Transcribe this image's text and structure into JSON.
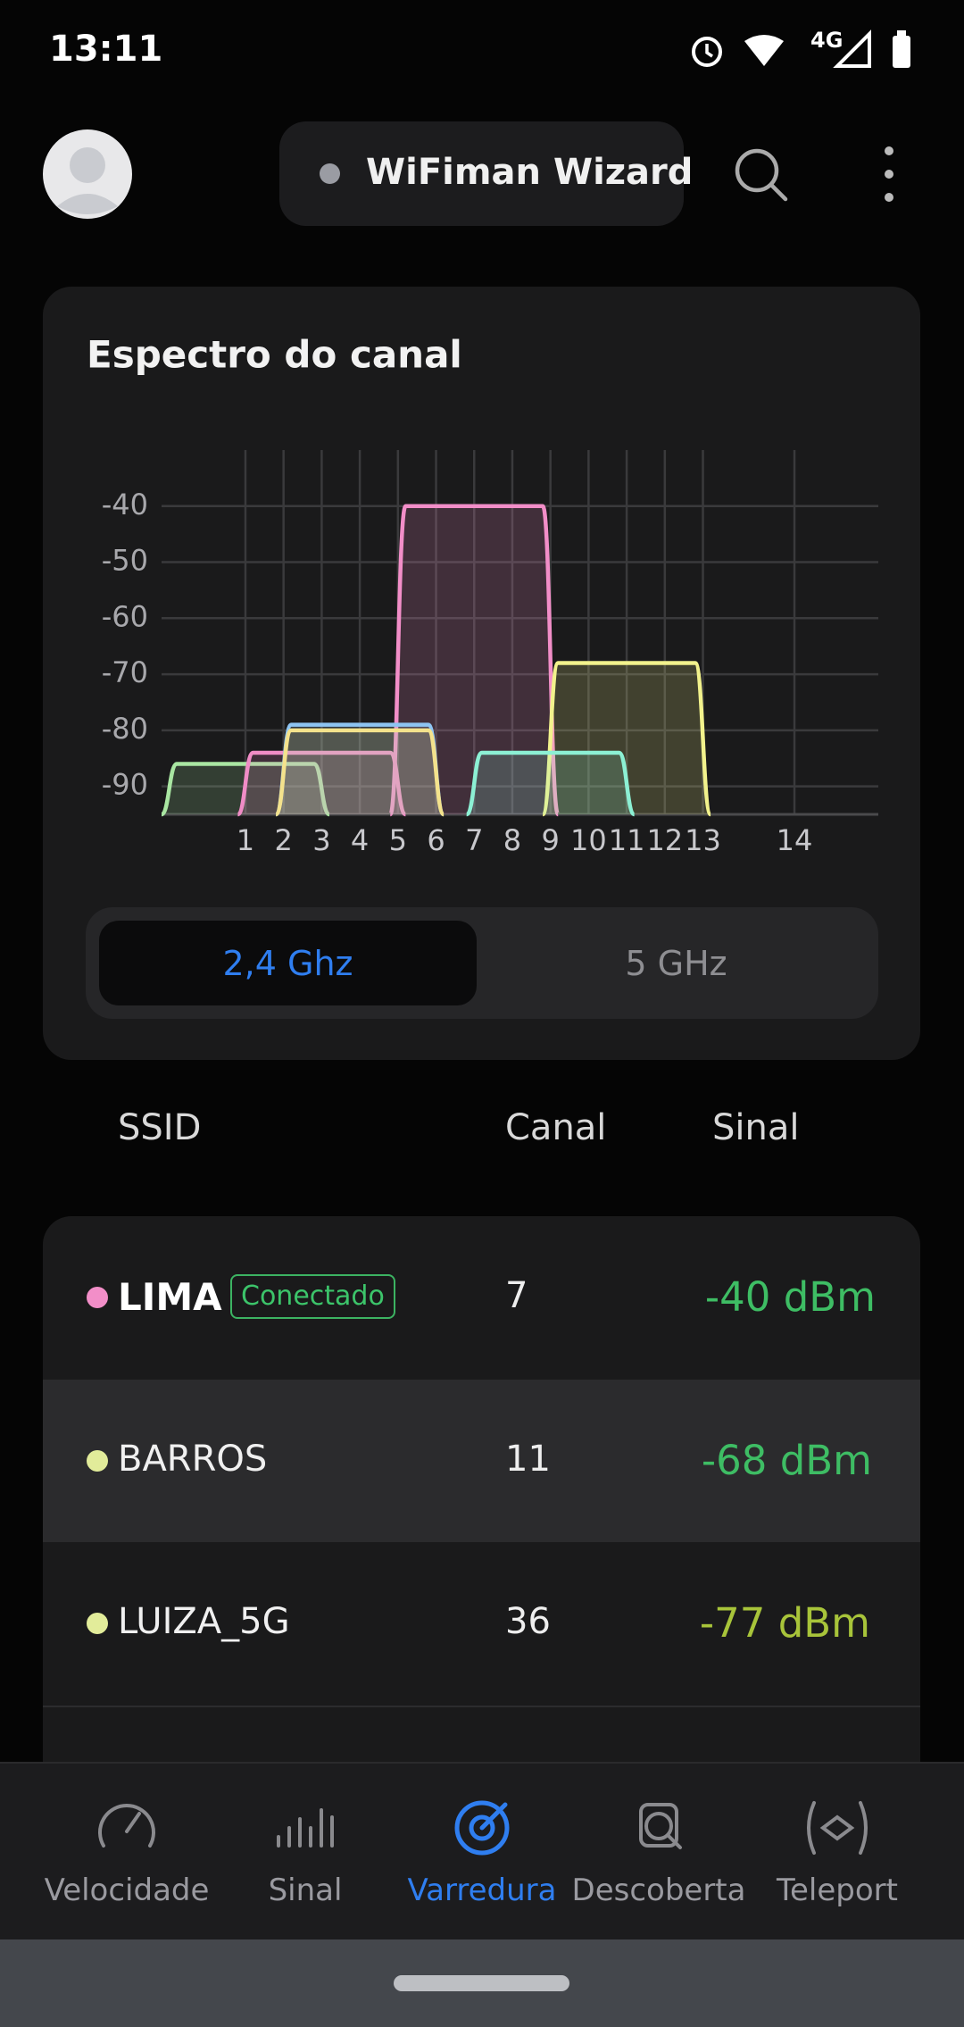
{
  "status_bar": {
    "time": "13:11",
    "network": "4G"
  },
  "header": {
    "title": "WiFiman Wizard"
  },
  "chart_data": {
    "type": "spectrum",
    "title": "Espectro do canal",
    "x": [
      2442,
      2462,
      2412,
      2422,
      2427,
      2427,
      2452
    ],
    "values": [
      -40,
      -68,
      -86,
      -84,
      -79,
      -80,
      -84
    ],
    "colors": [
      "#f28ec8",
      "#f2f28c",
      "#a9e6a2",
      "#f08cc6",
      "#8ec4f2",
      "#f4e28c",
      "#8cf0d4"
    ],
    "xlim": [
      2401,
      2495
    ],
    "xticks": [
      {
        "value": 2412,
        "label": "1"
      },
      {
        "value": 2417,
        "label": "2"
      },
      {
        "value": 2422,
        "label": "3"
      },
      {
        "value": 2427,
        "label": "4"
      },
      {
        "value": 2432,
        "label": "5"
      },
      {
        "value": 2437,
        "label": "6"
      },
      {
        "value": 2442,
        "label": "7"
      },
      {
        "value": 2447,
        "label": "8"
      },
      {
        "value": 2452,
        "label": "9"
      },
      {
        "value": 2457,
        "label": "10"
      },
      {
        "value": 2462,
        "label": "11"
      },
      {
        "value": 2467,
        "label": "12"
      },
      {
        "value": 2472,
        "label": "13"
      },
      {
        "value": 2484,
        "label": "14"
      }
    ],
    "ylim": [
      -95,
      -30
    ],
    "yticks": [
      -40,
      -50,
      -60,
      -70,
      -80,
      -90
    ],
    "grid": true
  },
  "tabs": [
    "2,4 Ghz",
    "5 GHz"
  ],
  "table": {
    "columns": [
      "SSID",
      "Canal",
      "Sinal"
    ],
    "badge": "Conectado",
    "rows": [
      [
        "LIMA",
        "7",
        "-40 dBm"
      ],
      [
        "BARROS",
        "11",
        "-68 dBm"
      ],
      [
        "LUIZA_5G",
        "36",
        "-77 dBm"
      ]
    ]
  },
  "nav": [
    "Velocidade",
    "Sinal",
    "Varredura",
    "Descoberta",
    "Teleport"
  ]
}
